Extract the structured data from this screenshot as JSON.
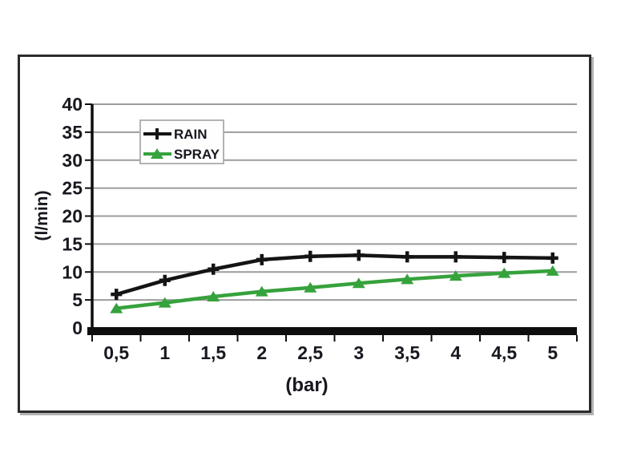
{
  "figure": {
    "border_color": "#2b2b2b",
    "shadow_color": "#b2b2b2",
    "background": "#ffffff"
  },
  "chart_data": {
    "type": "line",
    "xlabel": "(bar)",
    "ylabel": "(l/min)",
    "x": [
      0.5,
      1,
      1.5,
      2,
      2.5,
      3,
      3.5,
      4,
      4.5,
      5
    ],
    "x_tick_labels": [
      "0,5",
      "1",
      "1,5",
      "2",
      "2,5",
      "3",
      "3,5",
      "4",
      "4,5",
      "5"
    ],
    "y_ticks": [
      0,
      5,
      10,
      15,
      20,
      25,
      30,
      35,
      40
    ],
    "ylim": [
      0,
      40
    ],
    "grid": true,
    "legend_position": "top-left-inside",
    "series": [
      {
        "name": "RAIN",
        "color": "#141414",
        "marker": "plus",
        "values": [
          6,
          8.5,
          10.5,
          12.2,
          12.8,
          13,
          12.7,
          12.7,
          12.6,
          12.5
        ]
      },
      {
        "name": "SPRAY",
        "color": "#36a23c",
        "marker": "triangle",
        "values": [
          3.5,
          4.5,
          5.6,
          6.5,
          7.2,
          8,
          8.7,
          9.3,
          9.8,
          10.2
        ]
      }
    ],
    "styles": {
      "gridline_color": "#9c9c9c",
      "axis_color": "#0e0e0e",
      "tick_label_color": "#181820"
    }
  }
}
